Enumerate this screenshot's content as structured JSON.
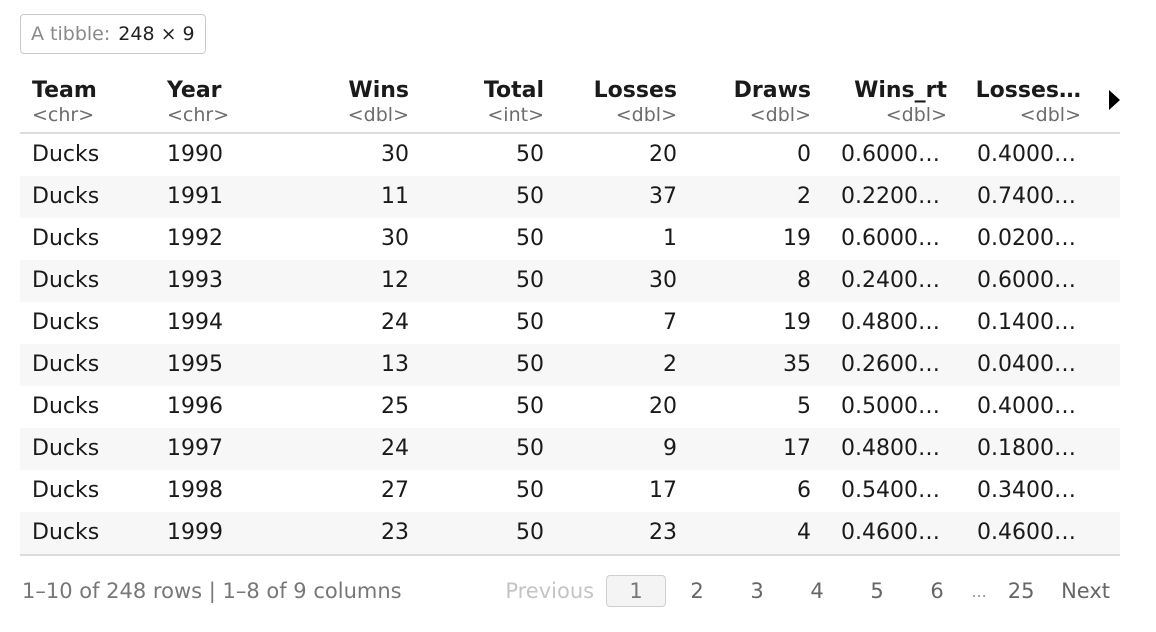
{
  "badge": {
    "label": "A tibble:",
    "dims": "248 × 9"
  },
  "columns": [
    {
      "name": "Team",
      "type": "<chr>"
    },
    {
      "name": "Year",
      "type": "<chr>"
    },
    {
      "name": "Wins",
      "type": "<dbl>"
    },
    {
      "name": "Total",
      "type": "<int>"
    },
    {
      "name": "Losses",
      "type": "<dbl>"
    },
    {
      "name": "Draws",
      "type": "<dbl>"
    },
    {
      "name": "Wins_rt",
      "type": "<dbl>"
    },
    {
      "name": "Losses…",
      "type": "<dbl>"
    }
  ],
  "rows": [
    [
      "Ducks",
      "1990",
      "30",
      "50",
      "20",
      "0",
      "0.6000…",
      "0.4000…"
    ],
    [
      "Ducks",
      "1991",
      "11",
      "50",
      "37",
      "2",
      "0.2200…",
      "0.7400…"
    ],
    [
      "Ducks",
      "1992",
      "30",
      "50",
      "1",
      "19",
      "0.6000…",
      "0.0200…"
    ],
    [
      "Ducks",
      "1993",
      "12",
      "50",
      "30",
      "8",
      "0.2400…",
      "0.6000…"
    ],
    [
      "Ducks",
      "1994",
      "24",
      "50",
      "7",
      "19",
      "0.4800…",
      "0.1400…"
    ],
    [
      "Ducks",
      "1995",
      "13",
      "50",
      "2",
      "35",
      "0.2600…",
      "0.0400…"
    ],
    [
      "Ducks",
      "1996",
      "25",
      "50",
      "20",
      "5",
      "0.5000…",
      "0.4000…"
    ],
    [
      "Ducks",
      "1997",
      "24",
      "50",
      "9",
      "17",
      "0.4800…",
      "0.1800…"
    ],
    [
      "Ducks",
      "1998",
      "27",
      "50",
      "17",
      "6",
      "0.5400…",
      "0.3400…"
    ],
    [
      "Ducks",
      "1999",
      "23",
      "50",
      "23",
      "4",
      "0.4600…",
      "0.4600…"
    ]
  ],
  "footer": {
    "row_info": "1–10 of 248 rows | 1–8 of 9 columns",
    "previous": "Previous",
    "pages": [
      "1",
      "2",
      "3",
      "4",
      "5",
      "6"
    ],
    "ellipsis": "...",
    "last_page": "25",
    "next": "Next",
    "current_page": "1"
  }
}
